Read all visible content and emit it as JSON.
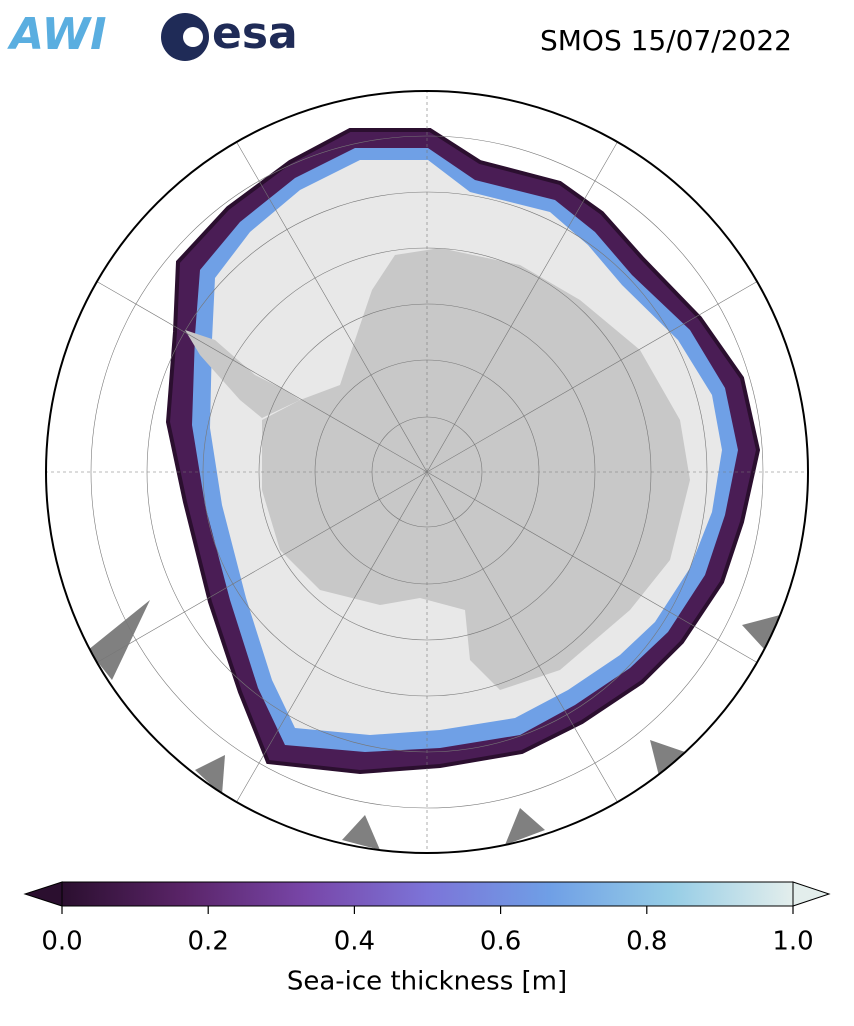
{
  "header": {
    "logos": [
      "AWI",
      "esa"
    ],
    "title": "SMOS 15/07/2022"
  },
  "colorbar": {
    "label": "Sea-ice thickness [m]",
    "range": [
      0,
      1
    ],
    "ticks": [
      {
        "value": 0,
        "label": "0.0"
      },
      {
        "value": 0.2,
        "label": "0.2"
      },
      {
        "value": 0.4,
        "label": "0.4"
      },
      {
        "value": 0.6,
        "label": "0.6"
      },
      {
        "value": 0.8,
        "label": "0.8"
      },
      {
        "value": 1,
        "label": "1.0"
      }
    ],
    "colors": [
      "#2b0f2f",
      "#5a2468",
      "#7846a8",
      "#7c74d8",
      "#6f9fe6",
      "#96cde6",
      "#e3eeec"
    ]
  }
}
